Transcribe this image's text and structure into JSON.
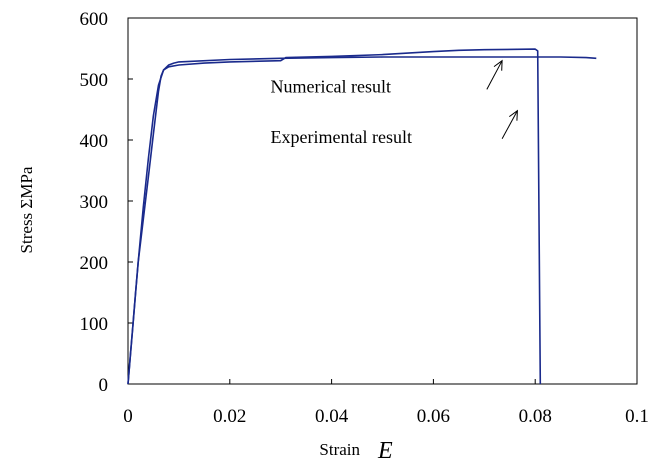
{
  "chart_data": {
    "type": "line",
    "title": "",
    "xlabel": "Strain",
    "xlabel_symbol": "E",
    "ylabel": "Stress ΣMPa",
    "xlim": [
      0,
      0.1
    ],
    "ylim": [
      0,
      600
    ],
    "x_ticks": [
      "0",
      "0.02",
      "0.04",
      "0.06",
      "0.08",
      "0.1"
    ],
    "y_ticks": [
      "0",
      "100",
      "200",
      "300",
      "400",
      "500",
      "600"
    ],
    "grid": false,
    "legend": "none",
    "line_color": "#1a2a8c",
    "annotations": [
      {
        "text": "Numerical result",
        "x": 0.028,
        "y": 478,
        "arrow_from": [
          0.0705,
          483
        ],
        "arrow_to": [
          0.0735,
          530
        ]
      },
      {
        "text": "Experimental result",
        "x": 0.028,
        "y": 395,
        "arrow_from": [
          0.0735,
          402
        ],
        "arrow_to": [
          0.0765,
          448
        ]
      }
    ],
    "series": [
      {
        "x": [
          0,
          0.0005,
          0.001,
          0.0015,
          0.002,
          0.003,
          0.004,
          0.005,
          0.006,
          0.0065,
          0.007,
          0.008,
          0.01,
          0.015,
          0.02,
          0.03,
          0.031,
          0.04,
          0.05,
          0.06,
          0.065,
          0.07,
          0.08,
          0.0805,
          0.081
        ],
        "y": [
          0,
          50,
          100,
          150,
          200,
          270,
          340,
          410,
          480,
          505,
          515,
          520,
          523,
          526,
          528,
          530,
          535,
          537,
          540,
          545,
          547,
          548,
          549,
          546,
          0
        ]
      },
      {
        "x": [
          0,
          0.0008,
          0.0015,
          0.002,
          0.003,
          0.004,
          0.005,
          0.006,
          0.007,
          0.008,
          0.009,
          0.01,
          0.02,
          0.03,
          0.04,
          0.05,
          0.06,
          0.07,
          0.08,
          0.085,
          0.09,
          0.092
        ],
        "y": [
          0,
          80,
          150,
          200,
          290,
          370,
          440,
          490,
          515,
          523,
          526,
          528,
          532,
          534,
          535,
          536,
          536,
          536,
          536,
          536,
          535,
          534
        ]
      }
    ]
  }
}
